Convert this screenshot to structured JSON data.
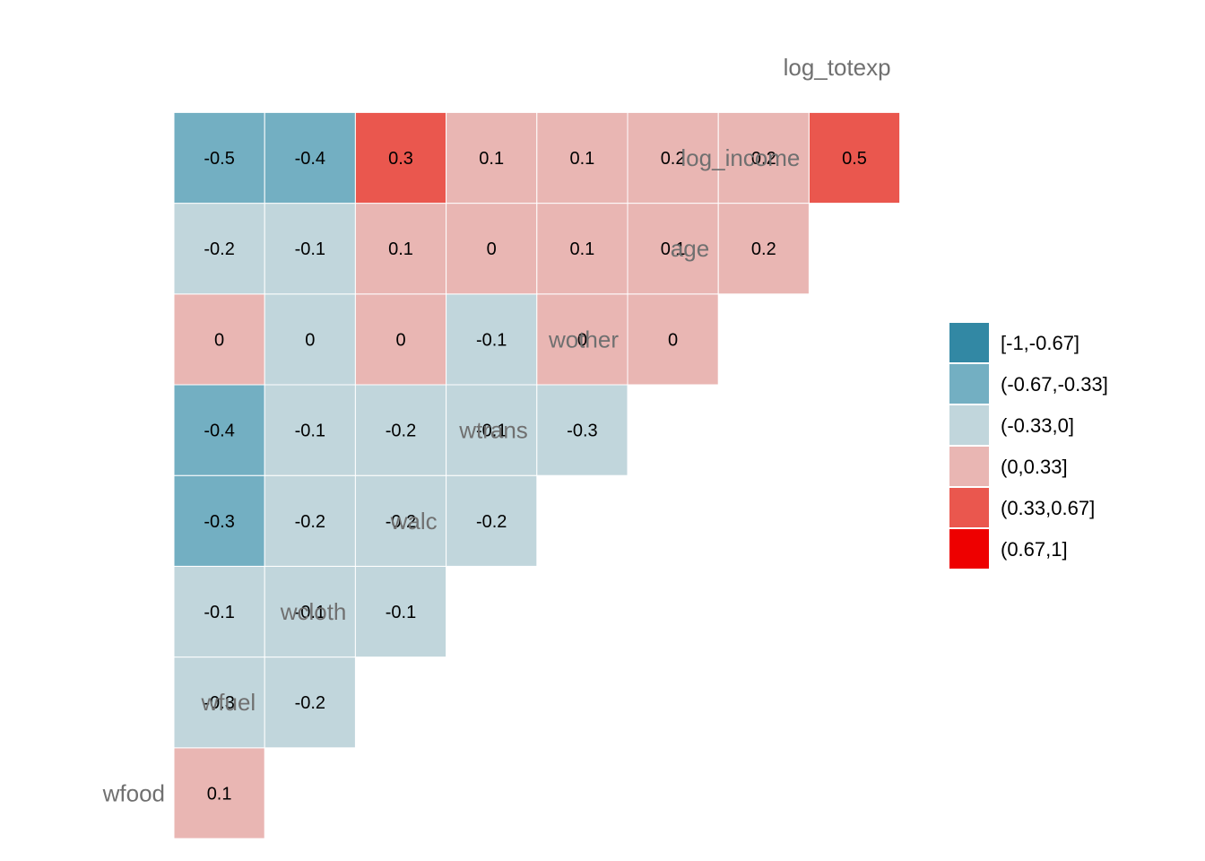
{
  "chart_data": {
    "type": "heatmap",
    "variables": [
      "wfood",
      "wfuel",
      "wcloth",
      "walc",
      "wtrans",
      "wother",
      "age",
      "log_income",
      "log_totexp"
    ],
    "cells": [
      {
        "row": "wfuel",
        "col": "wfood",
        "value": 0.1,
        "label": "0.1"
      },
      {
        "row": "wcloth",
        "col": "wfood",
        "value": -0.3,
        "label": "-0.3"
      },
      {
        "row": "wcloth",
        "col": "wfuel",
        "value": -0.2,
        "label": "-0.2"
      },
      {
        "row": "walc",
        "col": "wfood",
        "value": -0.1,
        "label": "-0.1"
      },
      {
        "row": "walc",
        "col": "wfuel",
        "value": -0.1,
        "label": "-0.1"
      },
      {
        "row": "walc",
        "col": "wcloth",
        "value": -0.1,
        "label": "-0.1"
      },
      {
        "row": "wtrans",
        "col": "wfood",
        "value": -0.34,
        "label": "-0.3"
      },
      {
        "row": "wtrans",
        "col": "wfuel",
        "value": -0.2,
        "label": "-0.2"
      },
      {
        "row": "wtrans",
        "col": "wcloth",
        "value": -0.2,
        "label": "-0.2"
      },
      {
        "row": "wtrans",
        "col": "walc",
        "value": -0.2,
        "label": "-0.2"
      },
      {
        "row": "wother",
        "col": "wfood",
        "value": -0.4,
        "label": "-0.4"
      },
      {
        "row": "wother",
        "col": "wfuel",
        "value": -0.1,
        "label": "-0.1"
      },
      {
        "row": "wother",
        "col": "wcloth",
        "value": -0.2,
        "label": "-0.2"
      },
      {
        "row": "wother",
        "col": "walc",
        "value": -0.1,
        "label": "-0.1"
      },
      {
        "row": "wother",
        "col": "wtrans",
        "value": -0.3,
        "label": "-0.3"
      },
      {
        "row": "age",
        "col": "wfood",
        "value": 0.01,
        "label": "0"
      },
      {
        "row": "age",
        "col": "wfuel",
        "value": -0.01,
        "label": "0"
      },
      {
        "row": "age",
        "col": "wcloth",
        "value": 0.01,
        "label": "0"
      },
      {
        "row": "age",
        "col": "walc",
        "value": -0.1,
        "label": "-0.1"
      },
      {
        "row": "age",
        "col": "wtrans",
        "value": 0.01,
        "label": "0"
      },
      {
        "row": "age",
        "col": "wother",
        "value": 0.01,
        "label": "0"
      },
      {
        "row": "log_income",
        "col": "wfood",
        "value": -0.2,
        "label": "-0.2"
      },
      {
        "row": "log_income",
        "col": "wfuel",
        "value": -0.1,
        "label": "-0.1"
      },
      {
        "row": "log_income",
        "col": "wcloth",
        "value": 0.1,
        "label": "0.1"
      },
      {
        "row": "log_income",
        "col": "walc",
        "value": 0.01,
        "label": "0"
      },
      {
        "row": "log_income",
        "col": "wtrans",
        "value": 0.1,
        "label": "0.1"
      },
      {
        "row": "log_income",
        "col": "wother",
        "value": 0.1,
        "label": "0.1"
      },
      {
        "row": "log_income",
        "col": "age",
        "value": 0.2,
        "label": "0.2"
      },
      {
        "row": "log_totexp",
        "col": "wfood",
        "value": -0.5,
        "label": "-0.5"
      },
      {
        "row": "log_totexp",
        "col": "wfuel",
        "value": -0.4,
        "label": "-0.4"
      },
      {
        "row": "log_totexp",
        "col": "wcloth",
        "value": 0.34,
        "label": "0.3"
      },
      {
        "row": "log_totexp",
        "col": "walc",
        "value": 0.1,
        "label": "0.1"
      },
      {
        "row": "log_totexp",
        "col": "wtrans",
        "value": 0.1,
        "label": "0.1"
      },
      {
        "row": "log_totexp",
        "col": "wother",
        "value": 0.2,
        "label": "0.2"
      },
      {
        "row": "log_totexp",
        "col": "age",
        "value": 0.2,
        "label": "0.2"
      },
      {
        "row": "log_totexp",
        "col": "log_income",
        "value": 0.5,
        "label": "0.5"
      }
    ],
    "legend": {
      "position": "right",
      "bins": [
        {
          "label": "[-1,-0.67]",
          "min": -1,
          "max": -0.67,
          "color": "#3288A4"
        },
        {
          "label": "(-0.67,-0.33]",
          "min": -0.67,
          "max": -0.33,
          "color": "#73AFC2"
        },
        {
          "label": "(-0.33,0]",
          "min": -0.33,
          "max": 0,
          "color": "#C1D6DC"
        },
        {
          "label": "(0,0.33]",
          "min": 0,
          "max": 0.33,
          "color": "#E9B6B3"
        },
        {
          "label": "(0.33,0.67]",
          "min": 0.33,
          "max": 0.67,
          "color": "#EA574E"
        },
        {
          "label": "(0.67,1]",
          "min": 0.67,
          "max": 1,
          "color": "#EE0000"
        }
      ]
    },
    "colors": {
      "label_text": "#707070",
      "cell_text": "#000000",
      "cell_border": "#ffffff"
    }
  }
}
